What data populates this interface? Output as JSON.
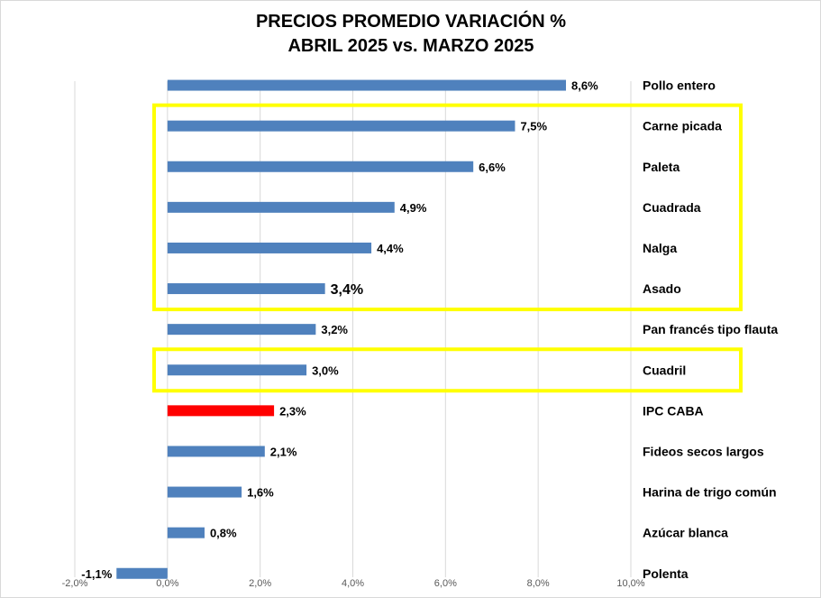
{
  "chart_data": {
    "type": "bar",
    "orientation": "horizontal",
    "title": [
      "PRECIOS PROMEDIO VARIACIÓN %",
      "ABRIL 2025 vs. MARZO 2025"
    ],
    "categories": [
      "Pollo entero",
      "Carne picada",
      "Paleta",
      "Cuadrada",
      "Nalga",
      "Asado",
      "Pan francés tipo flauta",
      "Cuadril",
      "IPC CABA",
      "Fideos secos largos",
      "Harina de trigo común",
      "Azúcar blanca",
      "Polenta"
    ],
    "values": [
      8.6,
      7.5,
      6.6,
      4.9,
      4.4,
      3.4,
      3.2,
      3.0,
      2.3,
      2.1,
      1.6,
      0.8,
      -1.1
    ],
    "value_labels": [
      "8,6%",
      "7,5%",
      "6,6%",
      "4,9%",
      "4,4%",
      "3,4%",
      "3,2%",
      "3,0%",
      "2,3%",
      "2,1%",
      "1,6%",
      "0,8%",
      "-1,1%"
    ],
    "xlim": [
      -2,
      10
    ],
    "xticks": [
      -2,
      0,
      2,
      4,
      6,
      8,
      10
    ],
    "xtick_labels": [
      "-2,0%",
      "0,0%",
      "2,0%",
      "4,0%",
      "6,0%",
      "8,0%",
      "10,0%"
    ],
    "grid": "vertical",
    "legend": "none",
    "colors": {
      "bar": "#4f81bd",
      "highlight_bar": "#ff0000",
      "highlight_box": "#ffff00",
      "gridline": "#d9d9d9"
    },
    "highlighted_bar_category": "IPC CABA",
    "highlight_groups": [
      [
        "Carne picada",
        "Paleta",
        "Cuadrada",
        "Nalga",
        "Asado"
      ],
      [
        "Cuadril"
      ]
    ],
    "large_label_category": "Asado"
  }
}
